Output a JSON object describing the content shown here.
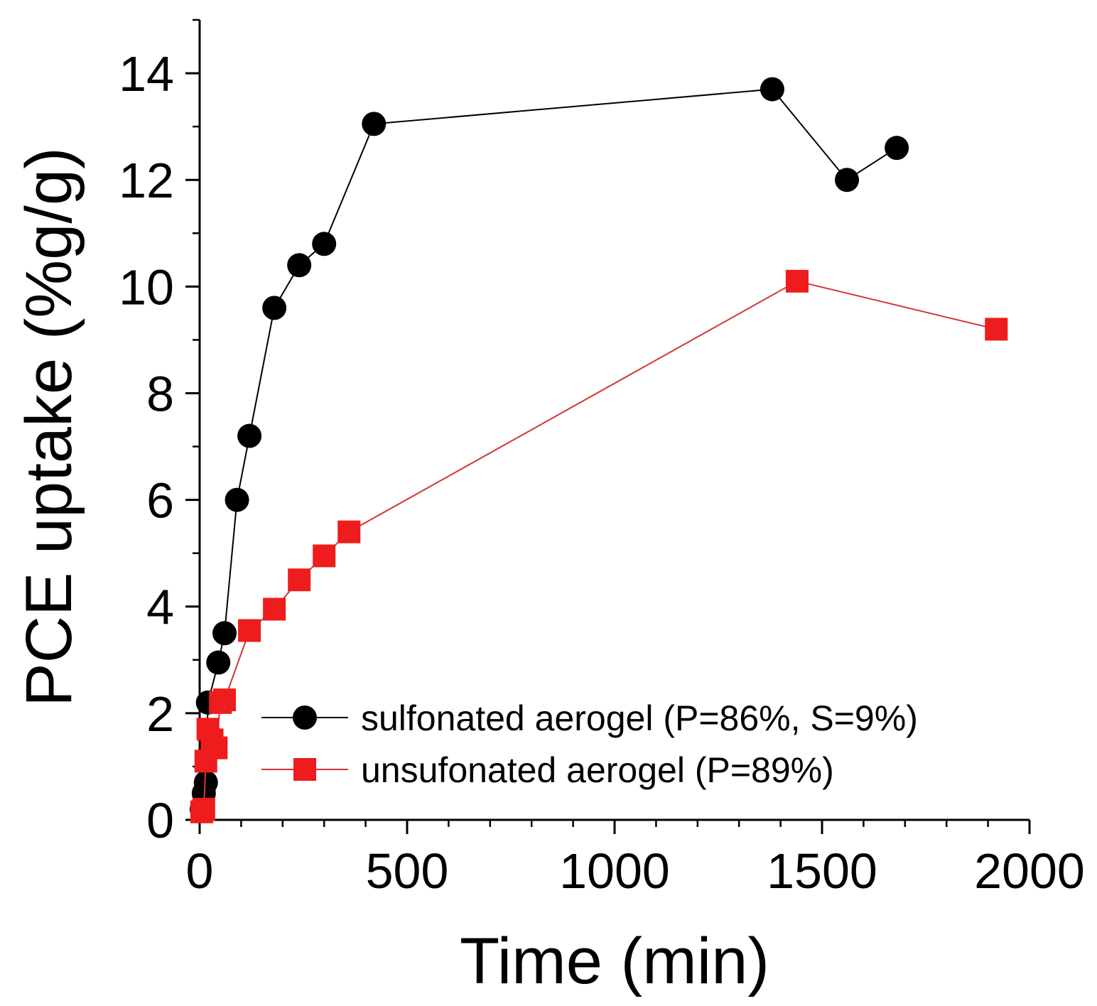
{
  "chart_data": {
    "type": "line",
    "title": "",
    "xlabel": "Time (min)",
    "ylabel": "PCE uptake (%g/g)",
    "xlim": [
      0,
      2000
    ],
    "ylim": [
      0,
      15
    ],
    "xticks": [
      0,
      500,
      1000,
      1500,
      2000
    ],
    "xtick_labels": [
      "0",
      "500",
      "1000",
      "1500",
      "2000"
    ],
    "yticks": [
      0,
      2,
      4,
      6,
      8,
      10,
      12,
      14
    ],
    "ytick_labels": [
      "0",
      "2",
      "4",
      "6",
      "8",
      "10",
      "12",
      "14"
    ],
    "x_minor_step": 100,
    "y_minor_step": 1,
    "grid": false,
    "legend_position": "bottom-center",
    "series": [
      {
        "name": "sulfonated aerogel (P=86%, S=9%)",
        "marker": "circle",
        "marker_color": "#000000",
        "line_color": "#000000",
        "x": [
          5,
          10,
          15,
          20,
          45,
          60,
          90,
          120,
          180,
          240,
          300,
          420,
          1380,
          1560,
          1680
        ],
        "y": [
          0.2,
          0.5,
          0.7,
          2.2,
          2.95,
          3.5,
          6.0,
          7.2,
          9.6,
          10.4,
          10.8,
          13.05,
          13.7,
          12.0,
          12.6
        ]
      },
      {
        "name": "unsufonated aerogel (P=89%)",
        "marker": "square",
        "marker_color": "#ee1c1c",
        "line_color": "#d33535",
        "x": [
          5,
          10,
          15,
          20,
          30,
          40,
          50,
          60,
          120,
          180,
          240,
          300,
          360,
          1440,
          1920
        ],
        "y": [
          0.15,
          0.2,
          1.1,
          1.7,
          1.5,
          1.35,
          2.2,
          2.25,
          3.55,
          3.95,
          4.5,
          4.95,
          5.4,
          10.1,
          9.2
        ]
      }
    ]
  }
}
